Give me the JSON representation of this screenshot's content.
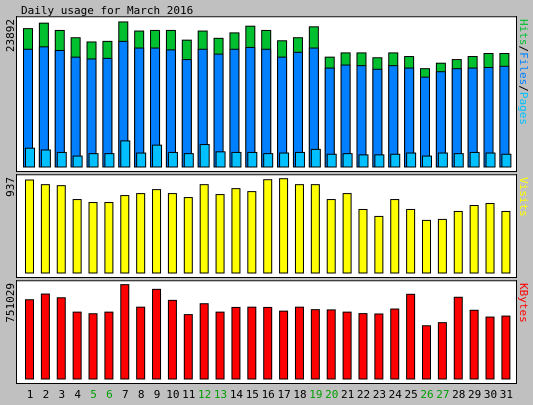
{
  "title": "Daily usage for March 2016",
  "colors": {
    "background": "#c0c0c0",
    "panel": "#ffffff",
    "hits": "#00c030",
    "files": "#0080ff",
    "pages": "#00c0ff",
    "visits": "#ffff00",
    "kbytes": "#ff0000",
    "weekend": "#00a000",
    "text": "#000000"
  },
  "chart_data": [
    {
      "type": "bar",
      "panel": "hits-files-pages",
      "ymax_label": "23892",
      "legend": [
        {
          "text": "Pages",
          "color": "#00c0ff"
        },
        {
          "text": "Files",
          "color": "#0080ff"
        },
        {
          "text": "Hits",
          "color": "#00c030"
        }
      ],
      "categories": [
        "1",
        "2",
        "3",
        "4",
        "5",
        "6",
        "7",
        "8",
        "9",
        "10",
        "11",
        "12",
        "13",
        "14",
        "15",
        "16",
        "17",
        "18",
        "19",
        "20",
        "21",
        "22",
        "23",
        "24",
        "25",
        "26",
        "27",
        "28",
        "29",
        "30",
        "31"
      ],
      "weekend_days": [
        "5",
        "6",
        "12",
        "13",
        "19",
        "20",
        "26",
        "27"
      ],
      "ylim": [
        0,
        23892
      ],
      "series": [
        {
          "name": "Hits",
          "values": [
            22800,
            23700,
            22500,
            21300,
            20600,
            20700,
            23900,
            22400,
            22500,
            22500,
            20900,
            22400,
            21200,
            22100,
            23200,
            22500,
            20800,
            21300,
            23100,
            18100,
            18800,
            18800,
            18000,
            18800,
            18200,
            16200,
            17100,
            17700,
            18200,
            18700,
            18700
          ]
        },
        {
          "name": "Files",
          "values": [
            19400,
            19800,
            19200,
            18100,
            17800,
            17900,
            20700,
            19600,
            19600,
            19300,
            17700,
            19400,
            18600,
            19400,
            19700,
            19400,
            18100,
            18900,
            19600,
            16300,
            16800,
            16700,
            16100,
            16700,
            16300,
            14800,
            15700,
            16200,
            16300,
            16400,
            16600
          ]
        },
        {
          "name": "Pages",
          "values": [
            3100,
            2800,
            2400,
            1800,
            2200,
            2200,
            4300,
            2300,
            3600,
            2400,
            2200,
            3700,
            2500,
            2400,
            2400,
            2200,
            2300,
            2400,
            2900,
            2100,
            2200,
            2000,
            2000,
            2100,
            2300,
            1800,
            2300,
            2200,
            2400,
            2300,
            2100
          ]
        }
      ]
    },
    {
      "type": "bar",
      "panel": "visits",
      "ymax_label": "937",
      "legend": [
        {
          "text": "Visits",
          "color": "#ffff00"
        }
      ],
      "categories": [
        "1",
        "2",
        "3",
        "4",
        "5",
        "6",
        "7",
        "8",
        "9",
        "10",
        "11",
        "12",
        "13",
        "14",
        "15",
        "16",
        "17",
        "18",
        "19",
        "20",
        "21",
        "22",
        "23",
        "24",
        "25",
        "26",
        "27",
        "28",
        "29",
        "30",
        "31"
      ],
      "ylim": [
        0,
        937
      ],
      "series": [
        {
          "name": "Visits",
          "values": [
            937,
            890,
            880,
            740,
            710,
            710,
            780,
            800,
            840,
            800,
            760,
            890,
            790,
            850,
            820,
            940,
            950,
            890,
            890,
            740,
            800,
            640,
            570,
            740,
            640,
            530,
            540,
            620,
            680,
            700,
            620
          ]
        }
      ]
    },
    {
      "type": "bar",
      "panel": "kbytes",
      "ymax_label": "751029",
      "legend": [
        {
          "text": "KBytes",
          "color": "#ff0000"
        }
      ],
      "categories": [
        "1",
        "2",
        "3",
        "4",
        "5",
        "6",
        "7",
        "8",
        "9",
        "10",
        "11",
        "12",
        "13",
        "14",
        "15",
        "16",
        "17",
        "18",
        "19",
        "20",
        "21",
        "22",
        "23",
        "24",
        "25",
        "26",
        "27",
        "28",
        "29",
        "30",
        "31"
      ],
      "ylim": [
        0,
        751029
      ],
      "series": [
        {
          "name": "KBytes",
          "values": [
            640000,
            686000,
            656000,
            540000,
            527000,
            540000,
            762000,
            580000,
            724000,
            635000,
            520000,
            608000,
            540000,
            578000,
            580000,
            578000,
            548000,
            580000,
            560000,
            558000,
            540000,
            528000,
            525000,
            565000,
            684000,
            430000,
            455000,
            660000,
            555000,
            500000,
            508000
          ]
        }
      ]
    }
  ]
}
